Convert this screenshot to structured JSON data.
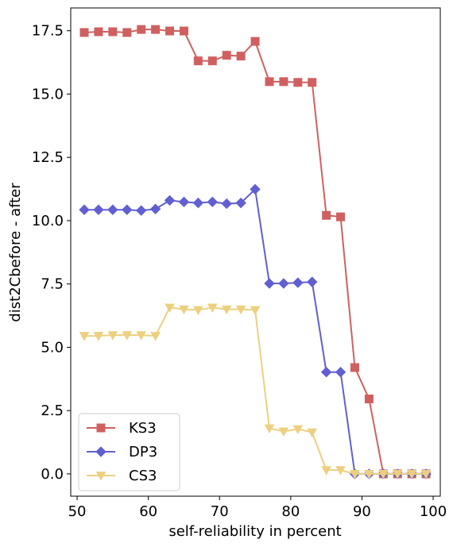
{
  "chart_data": {
    "type": "line",
    "title": "",
    "xlabel": "self-reliability in percent",
    "ylabel": "dist2Cbefore - after",
    "xlim": [
      49.1,
      101
    ],
    "ylim": [
      -0.88,
      18.4
    ],
    "xticks": [
      50,
      60,
      70,
      80,
      90,
      100
    ],
    "xtick_labels": [
      "50",
      "60",
      "70",
      "80",
      "90",
      "100"
    ],
    "yticks": [
      0.0,
      2.5,
      5.0,
      7.5,
      10.0,
      12.5,
      15.0,
      17.5
    ],
    "ytick_labels": [
      "0.0",
      "2.5",
      "5.0",
      "7.5",
      "10.0",
      "12.5",
      "15.0",
      "17.5"
    ],
    "grid": false,
    "legend_position": "lower-left",
    "x": [
      51,
      53,
      55,
      57,
      59,
      61,
      63,
      65,
      67,
      69,
      71,
      73,
      75,
      77,
      79,
      81,
      83,
      85,
      87,
      89,
      91,
      93,
      95,
      97,
      99
    ],
    "series": [
      {
        "name": "KS3",
        "color": "#d06060",
        "marker": "square",
        "values": [
          17.43,
          17.46,
          17.46,
          17.43,
          17.55,
          17.55,
          17.49,
          17.49,
          16.31,
          16.31,
          16.53,
          16.5,
          17.08,
          15.49,
          15.49,
          15.46,
          15.46,
          10.21,
          10.15,
          4.2,
          2.96,
          0.0,
          0.0,
          0.0,
          0.0
        ]
      },
      {
        "name": "DP3",
        "color": "#6060d0",
        "marker": "diamond",
        "values": [
          10.43,
          10.43,
          10.43,
          10.43,
          10.4,
          10.46,
          10.8,
          10.74,
          10.7,
          10.74,
          10.67,
          10.7,
          11.24,
          7.52,
          7.52,
          7.55,
          7.58,
          4.02,
          4.02,
          0.0,
          0.0,
          0.0,
          0.0,
          0.0,
          0.0
        ]
      },
      {
        "name": "CS3",
        "color": "#ecd080",
        "marker": "triangle-down",
        "values": [
          5.45,
          5.45,
          5.48,
          5.48,
          5.48,
          5.45,
          6.57,
          6.5,
          6.47,
          6.57,
          6.5,
          6.5,
          6.47,
          1.8,
          1.68,
          1.77,
          1.64,
          0.15,
          0.15,
          0.0,
          0.0,
          0.0,
          0.0,
          0.0,
          0.0
        ]
      }
    ]
  }
}
